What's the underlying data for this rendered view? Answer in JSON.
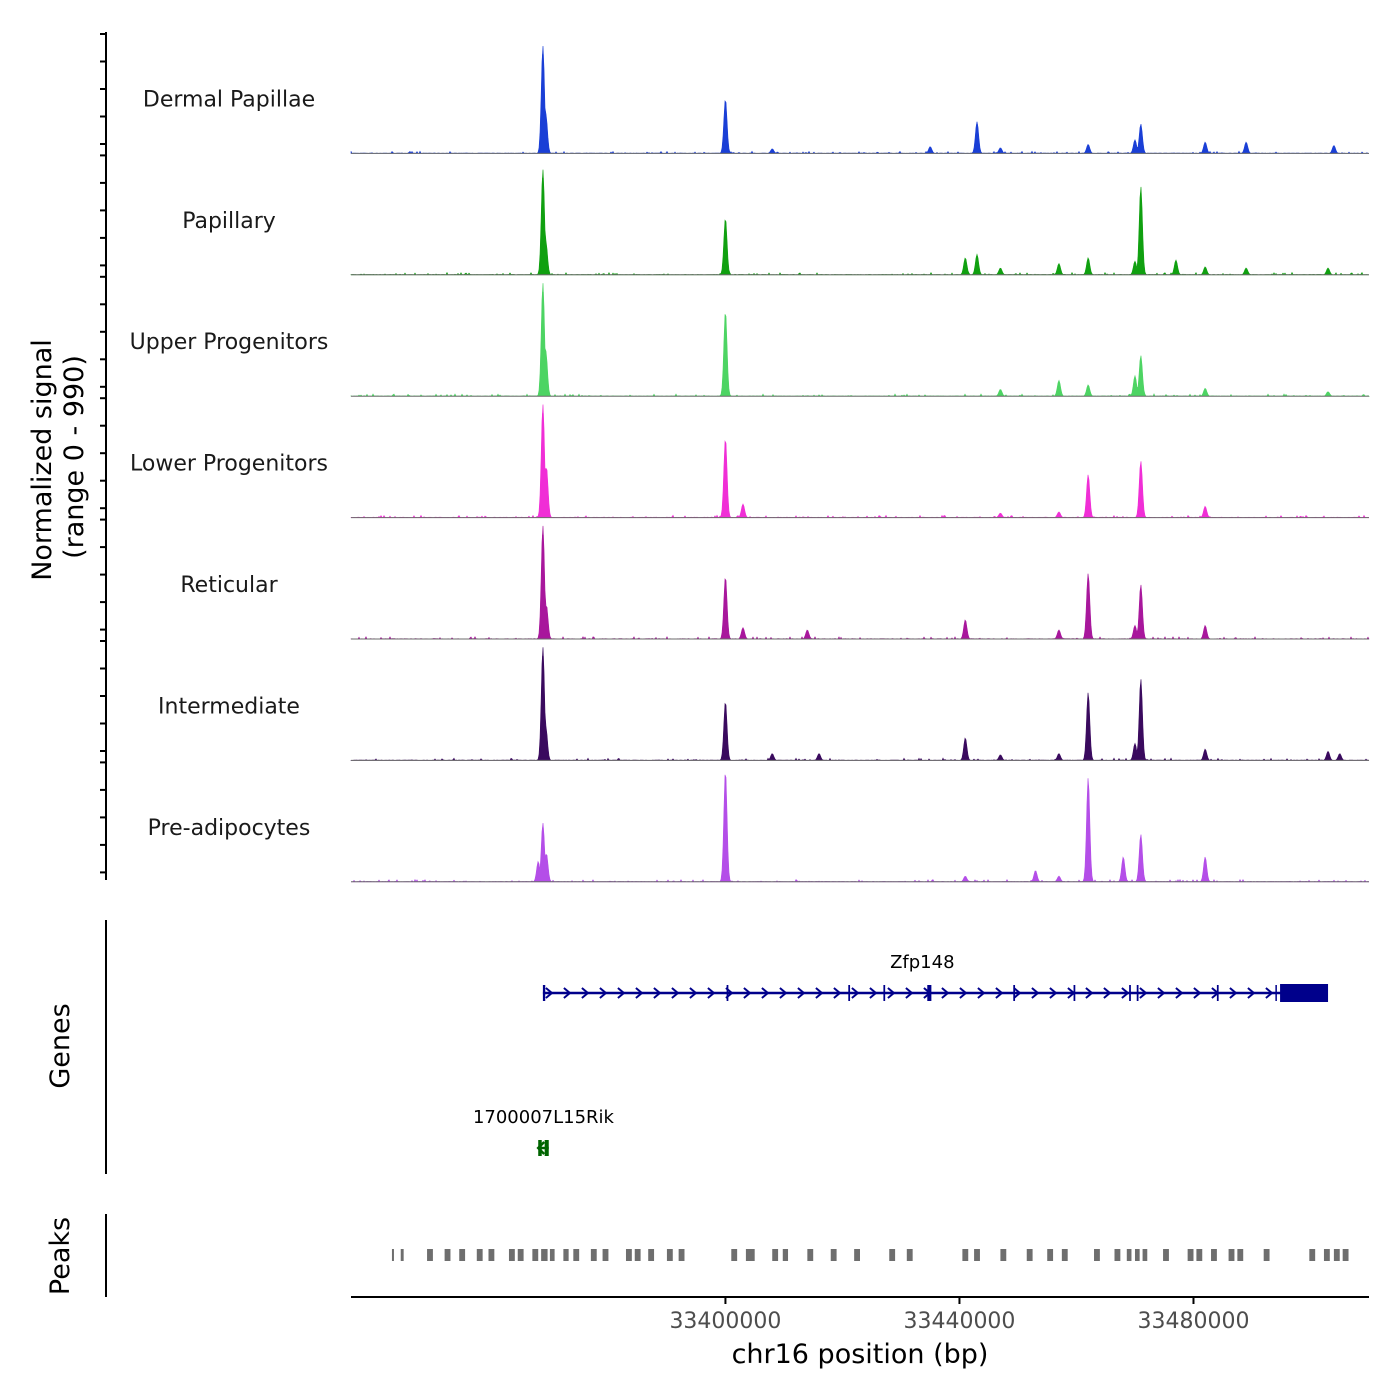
{
  "chart_data": {
    "type": "coverage",
    "chromosome": "chr16",
    "xlim": [
      33336000,
      33510000
    ],
    "ylabel_line1": "Normalized signal",
    "ylabel_line2": "(range 0 - 990)",
    "ylim": [
      0,
      990
    ],
    "genes_label": "Genes",
    "peaks_label": "Peaks",
    "xlabel": "chr16 position (bp)",
    "xticks": [
      33400000,
      33440000,
      33480000
    ],
    "xtick_labels": [
      "33400000",
      "33440000",
      "33480000"
    ],
    "tracks": [
      {
        "name": "Dermal Papillae",
        "color": "#1a3fd6",
        "peaks": [
          [
            33368800,
            0.95
          ],
          [
            33369300,
            0.35
          ],
          [
            33400000,
            0.48
          ],
          [
            33443000,
            0.28
          ],
          [
            33435000,
            0.06
          ],
          [
            33462000,
            0.08
          ],
          [
            33471000,
            0.26
          ],
          [
            33470000,
            0.12
          ],
          [
            33482000,
            0.1
          ],
          [
            33489000,
            0.1
          ],
          [
            33504000,
            0.07
          ],
          [
            33408000,
            0.04
          ],
          [
            33447000,
            0.05
          ]
        ]
      },
      {
        "name": "Papillary",
        "color": "#10a010",
        "peaks": [
          [
            33368800,
            0.93
          ],
          [
            33369300,
            0.3
          ],
          [
            33400000,
            0.5
          ],
          [
            33441000,
            0.15
          ],
          [
            33443000,
            0.18
          ],
          [
            33447000,
            0.06
          ],
          [
            33457000,
            0.1
          ],
          [
            33462000,
            0.15
          ],
          [
            33470000,
            0.12
          ],
          [
            33471000,
            0.78
          ],
          [
            33477000,
            0.13
          ],
          [
            33482000,
            0.07
          ],
          [
            33489000,
            0.06
          ],
          [
            33503000,
            0.06
          ]
        ]
      },
      {
        "name": "Upper Progenitors",
        "color": "#4dd463",
        "peaks": [
          [
            33368800,
            1.0
          ],
          [
            33369300,
            0.4
          ],
          [
            33400000,
            0.75
          ],
          [
            33447000,
            0.06
          ],
          [
            33457000,
            0.14
          ],
          [
            33462000,
            0.1
          ],
          [
            33470000,
            0.18
          ],
          [
            33471000,
            0.36
          ],
          [
            33482000,
            0.07
          ],
          [
            33503000,
            0.04
          ]
        ]
      },
      {
        "name": "Lower Progenitors",
        "color": "#f02ed6",
        "peaks": [
          [
            33368800,
            1.0
          ],
          [
            33369400,
            0.45
          ],
          [
            33400000,
            0.7
          ],
          [
            33403000,
            0.12
          ],
          [
            33447000,
            0.04
          ],
          [
            33457000,
            0.05
          ],
          [
            33462000,
            0.38
          ],
          [
            33471000,
            0.5
          ],
          [
            33482000,
            0.1
          ]
        ]
      },
      {
        "name": "Reticular",
        "color": "#a8179c",
        "peaks": [
          [
            33368800,
            1.0
          ],
          [
            33369400,
            0.3
          ],
          [
            33400000,
            0.55
          ],
          [
            33403000,
            0.1
          ],
          [
            33414000,
            0.08
          ],
          [
            33441000,
            0.17
          ],
          [
            33457000,
            0.08
          ],
          [
            33462000,
            0.58
          ],
          [
            33470000,
            0.12
          ],
          [
            33471000,
            0.48
          ],
          [
            33482000,
            0.12
          ]
        ]
      },
      {
        "name": "Intermediate",
        "color": "#3a0a5e",
        "peaks": [
          [
            33368800,
            1.0
          ],
          [
            33369300,
            0.3
          ],
          [
            33400000,
            0.52
          ],
          [
            33408000,
            0.06
          ],
          [
            33416000,
            0.06
          ],
          [
            33441000,
            0.2
          ],
          [
            33447000,
            0.05
          ],
          [
            33457000,
            0.06
          ],
          [
            33462000,
            0.6
          ],
          [
            33470000,
            0.15
          ],
          [
            33471000,
            0.72
          ],
          [
            33482000,
            0.1
          ],
          [
            33503000,
            0.08
          ],
          [
            33505000,
            0.06
          ]
        ]
      },
      {
        "name": "Pre-adipocytes",
        "color": "#b44ee8",
        "peaks": [
          [
            33368800,
            0.52
          ],
          [
            33369400,
            0.25
          ],
          [
            33368000,
            0.18
          ],
          [
            33400000,
            0.98
          ],
          [
            33441000,
            0.05
          ],
          [
            33453000,
            0.1
          ],
          [
            33462000,
            0.92
          ],
          [
            33468000,
            0.22
          ],
          [
            33471000,
            0.42
          ],
          [
            33482000,
            0.22
          ],
          [
            33457000,
            0.05
          ]
        ]
      }
    ],
    "genes": [
      {
        "name": "Zfp148",
        "color": "#00008b",
        "strand": "+",
        "start": 33368800,
        "end": 33498500,
        "exons": [
          [
            33368800,
            33369200
          ],
          [
            33400200,
            33400500
          ],
          [
            33421000,
            33421300
          ],
          [
            33427000,
            33427300
          ],
          [
            33434500,
            33435200
          ],
          [
            33449200,
            33449500
          ],
          [
            33459500,
            33459800
          ],
          [
            33469000,
            33469300
          ],
          [
            33470300,
            33470600
          ],
          [
            33484000,
            33484300
          ],
          [
            33494000,
            33494200
          ],
          [
            33494800,
            33503000
          ]
        ]
      },
      {
        "name": "1700007L15Rik",
        "color": "#006400",
        "strand": "-",
        "start": 33368000,
        "end": 33369800,
        "exons": [
          [
            33368000,
            33368600
          ],
          [
            33369100,
            33369800
          ]
        ]
      }
    ],
    "peaks": [
      [
        33343000,
        33343300
      ],
      [
        33344500,
        33345000
      ],
      [
        33349000,
        33350000
      ],
      [
        33352000,
        33353000
      ],
      [
        33354500,
        33355500
      ],
      [
        33357500,
        33358500
      ],
      [
        33359500,
        33360500
      ],
      [
        33363000,
        33364000
      ],
      [
        33364500,
        33365500
      ],
      [
        33367000,
        33368000
      ],
      [
        33368500,
        33369600
      ],
      [
        33370000,
        33370800
      ],
      [
        33372300,
        33373200
      ],
      [
        33374000,
        33375000
      ],
      [
        33377000,
        33378000
      ],
      [
        33379000,
        33380000
      ],
      [
        33383000,
        33384000
      ],
      [
        33384500,
        33385500
      ],
      [
        33386800,
        33387800
      ],
      [
        33390000,
        33391000
      ],
      [
        33392000,
        33393000
      ],
      [
        33401000,
        33402000
      ],
      [
        33403500,
        33405000
      ],
      [
        33408000,
        33409000
      ],
      [
        33409800,
        33410700
      ],
      [
        33414000,
        33415000
      ],
      [
        33418000,
        33419000
      ],
      [
        33422000,
        33423000
      ],
      [
        33428000,
        33429000
      ],
      [
        33431000,
        33432000
      ],
      [
        33440500,
        33441500
      ],
      [
        33442500,
        33443500
      ],
      [
        33447000,
        33448000
      ],
      [
        33451500,
        33452500
      ],
      [
        33455000,
        33456000
      ],
      [
        33457500,
        33458500
      ],
      [
        33463000,
        33464000
      ],
      [
        33466500,
        33467500
      ],
      [
        33468600,
        33469400
      ],
      [
        33470000,
        33470800
      ],
      [
        33471300,
        33472100
      ],
      [
        33474800,
        33475800
      ],
      [
        33479000,
        33480000
      ],
      [
        33480500,
        33481500
      ],
      [
        33483000,
        33484000
      ],
      [
        33486000,
        33487000
      ],
      [
        33487500,
        33488500
      ],
      [
        33492000,
        33493000
      ],
      [
        33499800,
        33500800
      ],
      [
        33502300,
        33503300
      ],
      [
        33504000,
        33505000
      ],
      [
        33505500,
        33506500
      ]
    ]
  }
}
